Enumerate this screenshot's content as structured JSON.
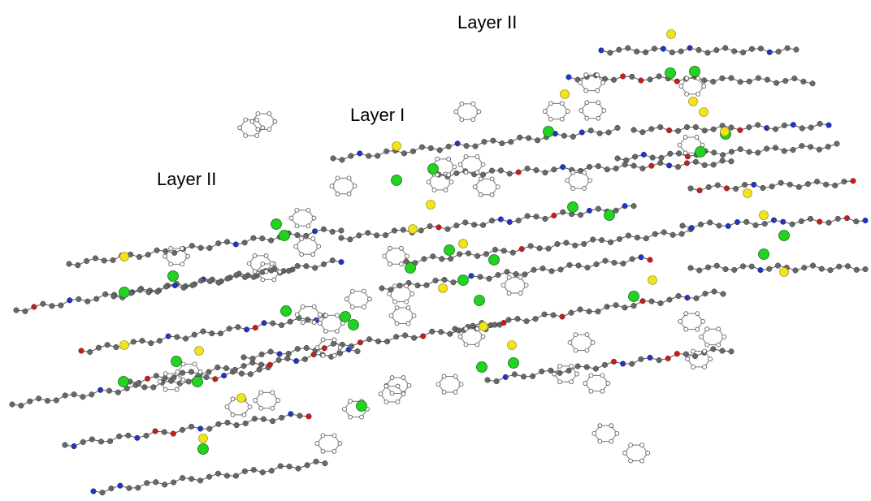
{
  "labels": [
    "Layer II",
    "Layer I",
    "Layer II"
  ]
}
